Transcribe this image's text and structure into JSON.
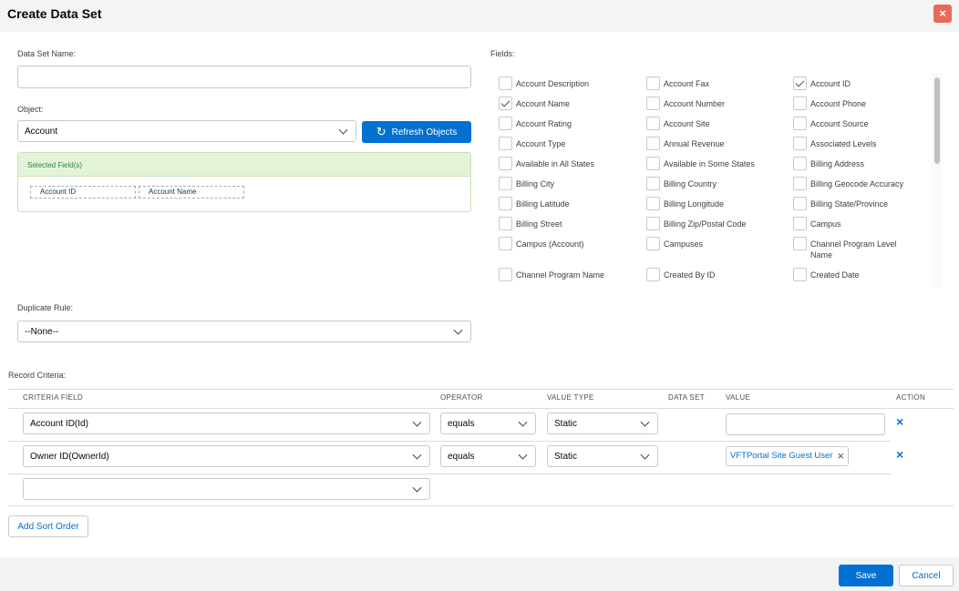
{
  "header": {
    "title": "Create Data Set"
  },
  "form": {
    "data_set_name_label": "Data Set Name:",
    "object_label": "Object:",
    "object_value": "Account",
    "refresh_button": "Refresh Objects",
    "selected_fields_title": "Selected Field(s)",
    "selected_fields": [
      "Account ID",
      "Account Name"
    ],
    "duplicate_rule_label": "Duplicate Rule:",
    "duplicate_rule_value": "--None--"
  },
  "fields": {
    "label": "Fields:",
    "items": [
      {
        "name": "Account Description",
        "checked": false
      },
      {
        "name": "Account Fax",
        "checked": false
      },
      {
        "name": "Account ID",
        "checked": true
      },
      {
        "name": "Account Name",
        "checked": true
      },
      {
        "name": "Account Number",
        "checked": false
      },
      {
        "name": "Account Phone",
        "checked": false
      },
      {
        "name": "Account Rating",
        "checked": false
      },
      {
        "name": "Account Site",
        "checked": false
      },
      {
        "name": "Account Source",
        "checked": false
      },
      {
        "name": "Account Type",
        "checked": false
      },
      {
        "name": "Annual Revenue",
        "checked": false
      },
      {
        "name": "Associated Levels",
        "checked": false
      },
      {
        "name": "Available in All States",
        "checked": false
      },
      {
        "name": "Available in Some States",
        "checked": false
      },
      {
        "name": "Billing Address",
        "checked": false
      },
      {
        "name": "Billing City",
        "checked": false
      },
      {
        "name": "Billing Country",
        "checked": false
      },
      {
        "name": "Billing Geocode Accuracy",
        "checked": false
      },
      {
        "name": "Billing Latitude",
        "checked": false
      },
      {
        "name": "Billing Longitude",
        "checked": false
      },
      {
        "name": "Billing State/Province",
        "checked": false
      },
      {
        "name": "Billing Street",
        "checked": false
      },
      {
        "name": "Billing Zip/Postal Code",
        "checked": false
      },
      {
        "name": "Campus",
        "checked": false
      },
      {
        "name": "Campus (Account)",
        "checked": false
      },
      {
        "name": "Campuses",
        "checked": false
      },
      {
        "name": "Channel Program Level Name",
        "checked": false
      },
      {
        "name": "Channel Program Name",
        "checked": false
      },
      {
        "name": "Created By ID",
        "checked": false
      },
      {
        "name": "Created Date",
        "checked": false
      }
    ]
  },
  "criteria": {
    "label": "Record Criteria:",
    "columns": [
      "CRITERIA FIELD",
      "OPERATOR",
      "VALUE TYPE",
      "DATA SET",
      "VALUE",
      "ACTION"
    ],
    "rows": [
      {
        "field": "Account ID(Id)",
        "operator": "equals",
        "value_type": "Static"
      },
      {
        "field": "Owner ID(OwnerId)",
        "operator": "equals",
        "value_type": "Static",
        "value": "VFTPortal Site Guest User"
      }
    ]
  },
  "buttons": {
    "add_sort_order": "Add Sort Order",
    "save": "Save",
    "cancel": "Cancel"
  }
}
